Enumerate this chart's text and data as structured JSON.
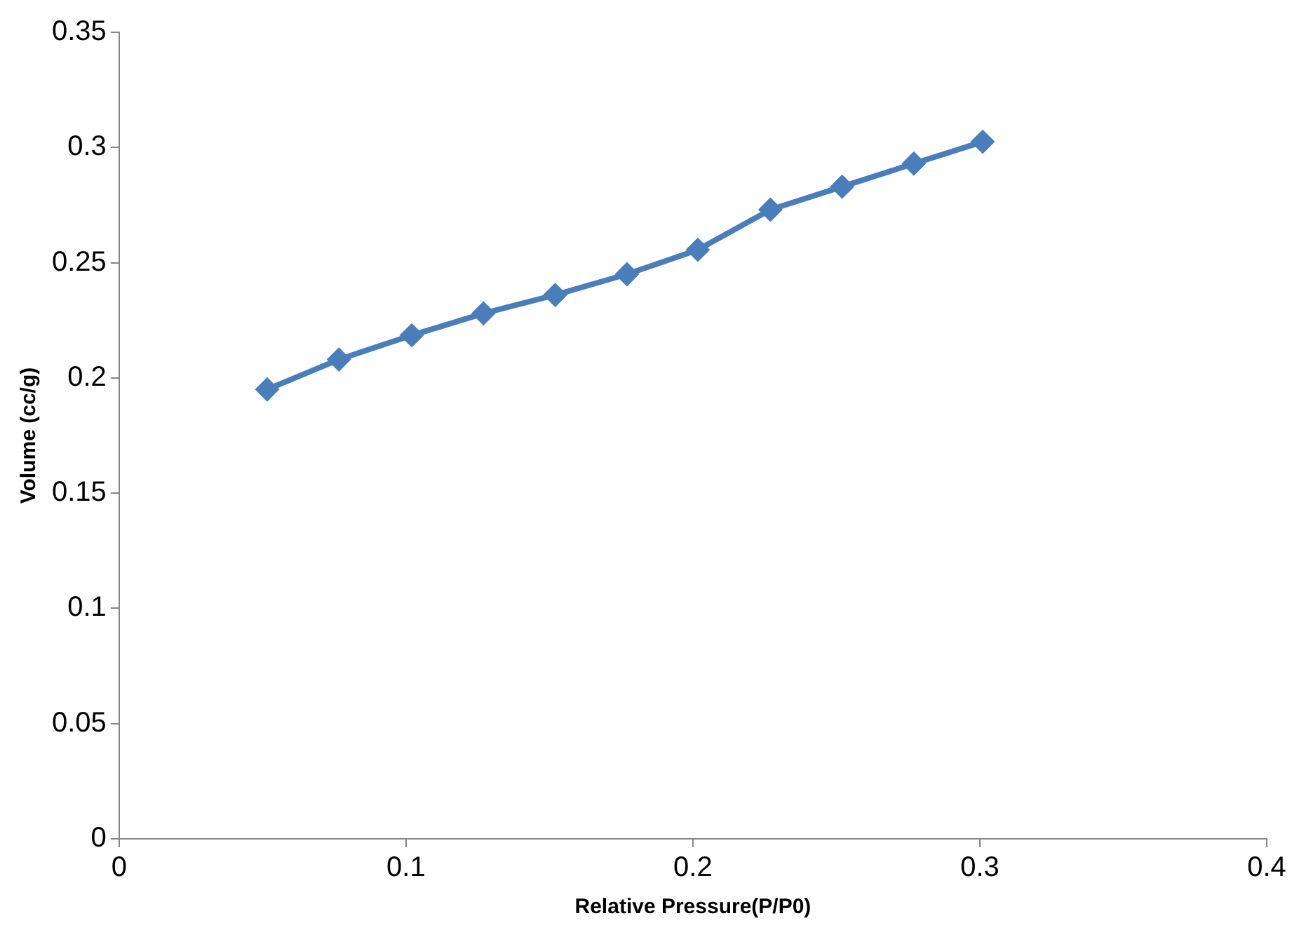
{
  "chart_data": {
    "type": "line",
    "xlabel": "Relative Pressure(P/P0)",
    "ylabel": "Volume (cc/g)",
    "x": [
      0.0516,
      0.0766,
      0.102,
      0.127,
      0.152,
      0.177,
      0.2017,
      0.227,
      0.252,
      0.277,
      0.301
    ],
    "series": [
      {
        "color": "#4a7ebb",
        "values": [
          0.195,
          0.208,
          0.2185,
          0.228,
          0.236,
          0.245,
          0.2556,
          0.273,
          0.283,
          0.293,
          0.3025
        ]
      }
    ],
    "xlim": [
      0,
      0.4
    ],
    "xticks": [
      0,
      0.1,
      0.2,
      0.3,
      0.4
    ],
    "ylim": [
      0,
      0.35
    ],
    "yticks": [
      0,
      0.05,
      0.1,
      0.15,
      0.2,
      0.25,
      0.3,
      0.35
    ],
    "grid": false,
    "legend": false,
    "marker": "diamond",
    "line_style": "solid"
  }
}
